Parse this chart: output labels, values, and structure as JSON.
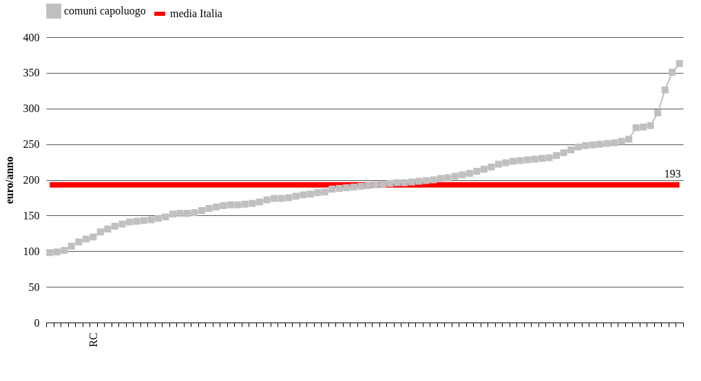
{
  "chart_data": {
    "type": "line",
    "ylabel": "euro/anno",
    "categories": [
      null,
      null,
      null,
      null,
      null,
      null,
      "RC",
      null,
      null,
      null,
      null,
      null,
      null,
      null,
      null,
      null,
      null,
      null,
      null,
      null,
      null,
      null,
      null,
      null,
      null,
      null,
      null,
      null,
      null,
      null,
      null,
      null,
      null,
      null,
      null,
      null,
      null,
      null,
      null,
      null,
      null,
      null,
      null,
      null,
      null,
      null,
      null,
      null,
      null,
      null,
      null,
      null,
      null,
      null,
      null,
      null,
      null,
      null,
      null,
      null,
      null,
      null,
      null,
      null,
      null,
      null,
      null,
      null,
      null,
      null,
      null,
      null,
      null,
      null,
      null,
      null,
      null,
      null,
      null,
      null,
      null,
      null,
      null,
      null,
      null,
      null,
      null,
      null
    ],
    "series": [
      {
        "name": "comuni capoluogo",
        "color": "#c0c0c0",
        "marker": "square",
        "values": [
          98,
          99,
          101,
          107,
          113,
          117,
          120,
          127,
          131,
          135,
          138,
          141,
          142,
          143,
          144,
          146,
          148,
          152,
          153,
          153,
          154,
          157,
          160,
          162,
          164,
          165,
          165,
          166,
          167,
          169,
          172,
          174,
          174,
          175,
          177,
          179,
          180,
          182,
          183,
          187,
          188,
          189,
          190,
          191,
          192,
          193,
          194,
          195,
          196,
          196,
          197,
          198,
          199,
          200,
          202,
          203,
          205,
          207,
          209,
          212,
          215,
          218,
          222,
          224,
          226,
          227,
          228,
          229,
          230,
          231,
          234,
          238,
          242,
          246,
          248,
          249,
          250,
          251,
          252,
          254,
          257,
          273,
          274,
          276,
          294,
          326,
          351,
          363
        ]
      },
      {
        "name": "media Italia",
        "color": "#ff0000",
        "marker": "none",
        "values": [
          193,
          193,
          193,
          193,
          193,
          193,
          193,
          193,
          193,
          193,
          193,
          193,
          193,
          193,
          193,
          193,
          193,
          193,
          193,
          193,
          193,
          193,
          193,
          193,
          193,
          193,
          193,
          193,
          193,
          193,
          193,
          193,
          193,
          193,
          193,
          193,
          193,
          193,
          193,
          193,
          193,
          193,
          193,
          193,
          193,
          193,
          193,
          193,
          193,
          193,
          193,
          193,
          193,
          193,
          193,
          193,
          193,
          193,
          193,
          193,
          193,
          193,
          193,
          193,
          193,
          193,
          193,
          193,
          193,
          193,
          193,
          193,
          193,
          193,
          193,
          193,
          193,
          193,
          193,
          193,
          193,
          193,
          193,
          193,
          193,
          193,
          193,
          193
        ],
        "value_labels": [
          null,
          null,
          null,
          null,
          null,
          null,
          null,
          null,
          null,
          null,
          null,
          null,
          null,
          null,
          null,
          null,
          null,
          null,
          null,
          null,
          null,
          null,
          null,
          null,
          null,
          null,
          null,
          null,
          null,
          null,
          null,
          null,
          null,
          null,
          null,
          null,
          null,
          null,
          null,
          null,
          null,
          null,
          null,
          null,
          null,
          null,
          null,
          null,
          null,
          null,
          null,
          null,
          null,
          null,
          null,
          null,
          null,
          null,
          null,
          null,
          null,
          null,
          null,
          null,
          null,
          null,
          null,
          null,
          null,
          null,
          null,
          null,
          null,
          null,
          null,
          null,
          null,
          null,
          null,
          null,
          null,
          null,
          null,
          null,
          null,
          null,
          null,
          "193"
        ]
      }
    ],
    "ylim": [
      0,
      400
    ],
    "yticks": [
      0,
      50,
      100,
      150,
      200,
      250,
      300,
      350,
      400
    ],
    "grid": "y",
    "legend": "top"
  }
}
